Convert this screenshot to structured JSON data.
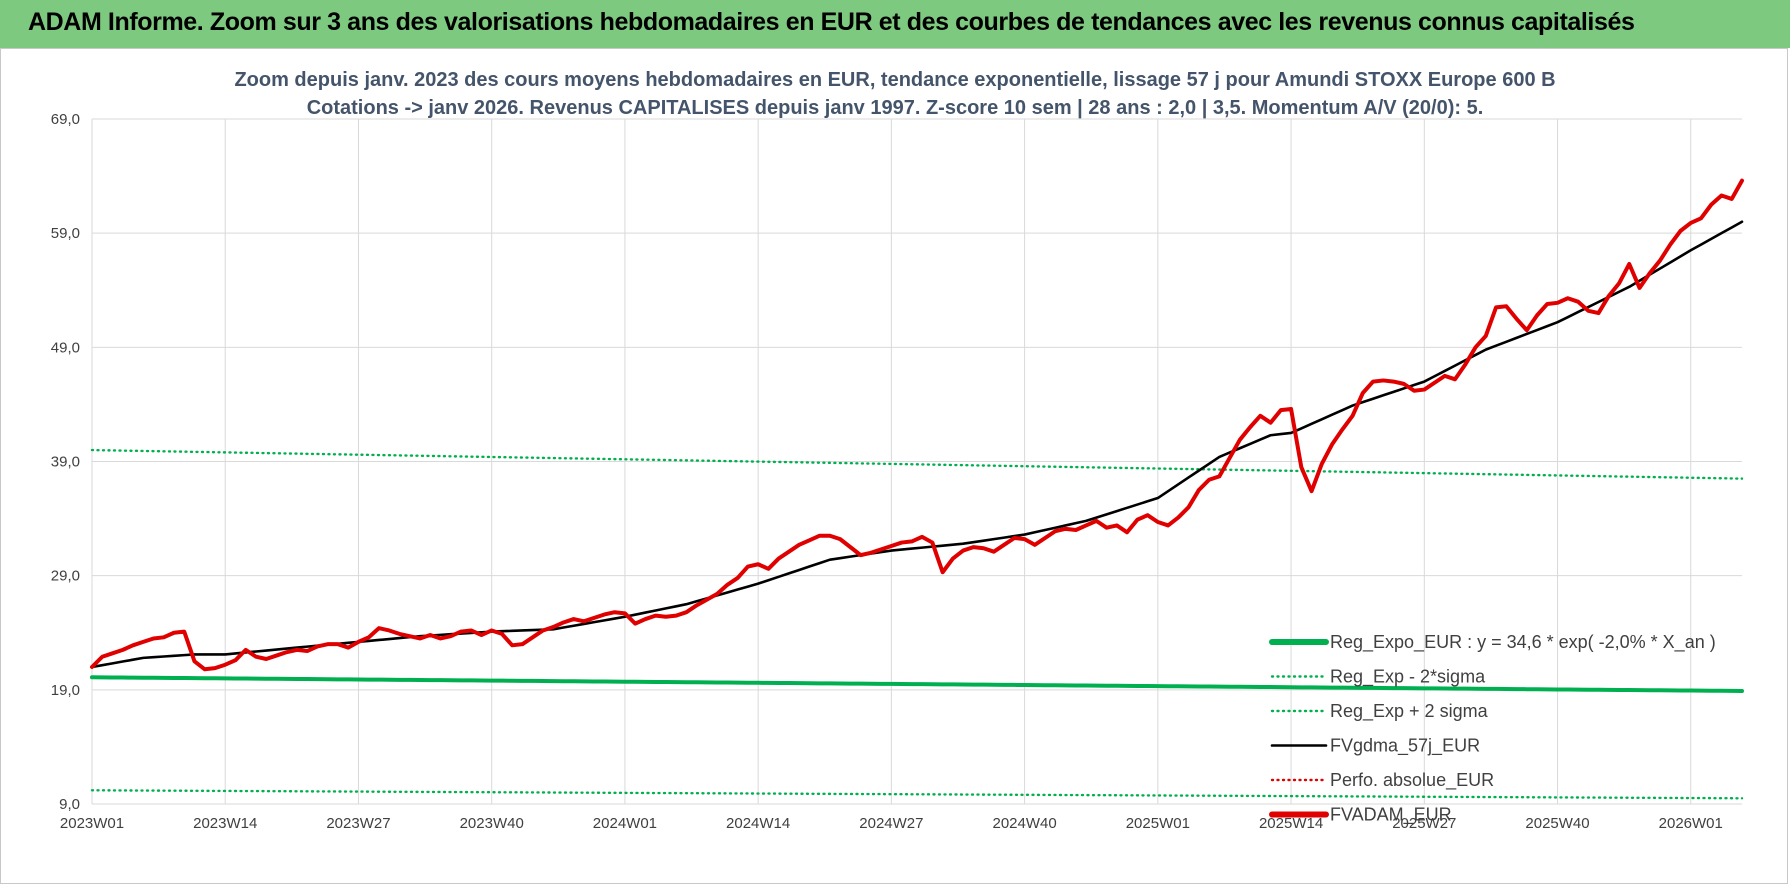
{
  "banner": {
    "title": "ADAM Informe. Zoom sur 3 ans des valorisations hebdomadaires en EUR et des courbes de tendances avec les revenus connus capitalisés"
  },
  "chart_data": {
    "type": "line",
    "title": "Zoom depuis janv. 2023 des cours moyens hebdomadaires en EUR, tendance exponentielle, lissage 57 j pour Amundi STOXX Europe 600 B",
    "subtitle": "Cotations -> janv 2026. Revenus CAPITALISES depuis janv 1997. Z-score 10 sem | 28 ans : 2,0 | 3,5. Momentum A/V (20/0): 5.",
    "ylim": [
      9,
      69
    ],
    "y_ticks": [
      "9,0",
      "19,0",
      "29,0",
      "39,0",
      "49,0",
      "59,0",
      "69,0"
    ],
    "x_range": [
      0,
      161
    ],
    "x_ticks": [
      {
        "i": 0,
        "label": "2023W01"
      },
      {
        "i": 13,
        "label": "2023W14"
      },
      {
        "i": 26,
        "label": "2023W27"
      },
      {
        "i": 39,
        "label": "2023W40"
      },
      {
        "i": 52,
        "label": "2024W01"
      },
      {
        "i": 65,
        "label": "2024W14"
      },
      {
        "i": 78,
        "label": "2024W27"
      },
      {
        "i": 91,
        "label": "2024W40"
      },
      {
        "i": 104,
        "label": "2025W01"
      },
      {
        "i": 117,
        "label": "2025W14"
      },
      {
        "i": 130,
        "label": "2025W27"
      },
      {
        "i": 143,
        "label": "2025W40"
      },
      {
        "i": 156,
        "label": "2026W01"
      }
    ],
    "grid": true,
    "legend_position": "bottom-right",
    "colors": {
      "green": "#00b050",
      "black": "#000000",
      "red": "#e00000",
      "grid": "#d9d9d9"
    },
    "series": [
      {
        "name": "Reg_Expo_EUR : y = 34,6 * exp( -2,0% *  X_an )",
        "style": "solid-thick",
        "color": "#00b050",
        "step": 1,
        "points": [
          [
            0,
            20.1
          ],
          [
            161,
            18.9
          ]
        ]
      },
      {
        "name": "Reg_Exp - 2*sigma",
        "style": "dotted",
        "color": "#00b050",
        "step": 1,
        "points": [
          [
            0,
            10.2
          ],
          [
            161,
            9.5
          ]
        ]
      },
      {
        "name": "Reg_Exp + 2 sigma",
        "style": "dotted",
        "color": "#00b050",
        "step": 1,
        "points": [
          [
            0,
            40.0
          ],
          [
            161,
            37.5
          ]
        ]
      },
      {
        "name": "FVgdma_57j_EUR",
        "style": "solid",
        "color": "#000000",
        "step": 1,
        "points": [
          [
            0,
            21.0
          ],
          [
            5,
            21.8
          ],
          [
            10,
            22.1
          ],
          [
            13,
            22.1
          ],
          [
            20,
            22.7
          ],
          [
            26,
            23.2
          ],
          [
            32,
            23.7
          ],
          [
            39,
            24.1
          ],
          [
            45,
            24.3
          ],
          [
            52,
            25.4
          ],
          [
            58,
            26.5
          ],
          [
            65,
            28.3
          ],
          [
            72,
            30.4
          ],
          [
            78,
            31.2
          ],
          [
            85,
            31.8
          ],
          [
            91,
            32.6
          ],
          [
            97,
            33.8
          ],
          [
            104,
            35.8
          ],
          [
            110,
            39.4
          ],
          [
            115,
            41.3
          ],
          [
            117,
            41.5
          ],
          [
            123,
            43.9
          ],
          [
            130,
            46.0
          ],
          [
            136,
            48.8
          ],
          [
            143,
            51.2
          ],
          [
            150,
            54.3
          ],
          [
            156,
            57.5
          ],
          [
            161,
            60.0
          ]
        ]
      },
      {
        "name": "Perfo. absolue_EUR",
        "style": "dotted",
        "color": "#e00000",
        "step": 1,
        "points": []
      },
      {
        "name": "FVADAM_EUR",
        "style": "solid-thick",
        "color": "#e00000",
        "step": 1,
        "points": [
          [
            0,
            21.0
          ],
          [
            1,
            21.9
          ],
          [
            2,
            22.2
          ],
          [
            3,
            22.5
          ],
          [
            4,
            22.9
          ],
          [
            5,
            23.2
          ],
          [
            6,
            23.5
          ],
          [
            7,
            23.6
          ],
          [
            8,
            24.0
          ],
          [
            9,
            24.1
          ],
          [
            10,
            21.5
          ],
          [
            11,
            20.8
          ],
          [
            12,
            20.9
          ],
          [
            13,
            21.2
          ],
          [
            14,
            21.6
          ],
          [
            15,
            22.5
          ],
          [
            16,
            21.9
          ],
          [
            17,
            21.7
          ],
          [
            18,
            22.0
          ],
          [
            19,
            22.3
          ],
          [
            20,
            22.5
          ],
          [
            21,
            22.4
          ],
          [
            22,
            22.8
          ],
          [
            23,
            23.0
          ],
          [
            24,
            23.0
          ],
          [
            25,
            22.7
          ],
          [
            26,
            23.2
          ],
          [
            27,
            23.6
          ],
          [
            28,
            24.4
          ],
          [
            29,
            24.2
          ],
          [
            30,
            23.9
          ],
          [
            31,
            23.7
          ],
          [
            32,
            23.5
          ],
          [
            33,
            23.8
          ],
          [
            34,
            23.5
          ],
          [
            35,
            23.7
          ],
          [
            36,
            24.1
          ],
          [
            37,
            24.2
          ],
          [
            38,
            23.8
          ],
          [
            39,
            24.2
          ],
          [
            40,
            23.9
          ],
          [
            41,
            22.9
          ],
          [
            42,
            23.0
          ],
          [
            43,
            23.6
          ],
          [
            44,
            24.2
          ],
          [
            45,
            24.5
          ],
          [
            46,
            24.9
          ],
          [
            47,
            25.2
          ],
          [
            48,
            25.0
          ],
          [
            49,
            25.3
          ],
          [
            50,
            25.6
          ],
          [
            51,
            25.8
          ],
          [
            52,
            25.7
          ],
          [
            53,
            24.8
          ],
          [
            54,
            25.2
          ],
          [
            55,
            25.5
          ],
          [
            56,
            25.4
          ],
          [
            57,
            25.5
          ],
          [
            58,
            25.8
          ],
          [
            59,
            26.4
          ],
          [
            60,
            26.9
          ],
          [
            61,
            27.4
          ],
          [
            62,
            28.2
          ],
          [
            63,
            28.8
          ],
          [
            64,
            29.8
          ],
          [
            65,
            30.0
          ],
          [
            66,
            29.6
          ],
          [
            67,
            30.5
          ],
          [
            68,
            31.1
          ],
          [
            69,
            31.7
          ],
          [
            70,
            32.1
          ],
          [
            71,
            32.5
          ],
          [
            72,
            32.5
          ],
          [
            73,
            32.2
          ],
          [
            74,
            31.5
          ],
          [
            75,
            30.8
          ],
          [
            76,
            31.0
          ],
          [
            77,
            31.3
          ],
          [
            78,
            31.6
          ],
          [
            79,
            31.9
          ],
          [
            80,
            32.0
          ],
          [
            81,
            32.4
          ],
          [
            82,
            31.9
          ],
          [
            83,
            29.3
          ],
          [
            84,
            30.5
          ],
          [
            85,
            31.2
          ],
          [
            86,
            31.5
          ],
          [
            87,
            31.4
          ],
          [
            88,
            31.1
          ],
          [
            89,
            31.7
          ],
          [
            90,
            32.3
          ],
          [
            91,
            32.2
          ],
          [
            92,
            31.7
          ],
          [
            93,
            32.3
          ],
          [
            94,
            32.9
          ],
          [
            95,
            33.1
          ],
          [
            96,
            33.0
          ],
          [
            97,
            33.4
          ],
          [
            98,
            33.8
          ],
          [
            99,
            33.2
          ],
          [
            100,
            33.4
          ],
          [
            101,
            32.8
          ],
          [
            102,
            33.9
          ],
          [
            103,
            34.3
          ],
          [
            104,
            33.7
          ],
          [
            105,
            33.4
          ],
          [
            106,
            34.1
          ],
          [
            107,
            35.0
          ],
          [
            108,
            36.5
          ],
          [
            109,
            37.4
          ],
          [
            110,
            37.7
          ],
          [
            111,
            39.3
          ],
          [
            112,
            40.9
          ],
          [
            113,
            42.0
          ],
          [
            114,
            43.0
          ],
          [
            115,
            42.4
          ],
          [
            116,
            43.5
          ],
          [
            117,
            43.6
          ],
          [
            118,
            38.5
          ],
          [
            119,
            36.4
          ],
          [
            120,
            38.8
          ],
          [
            121,
            40.5
          ],
          [
            122,
            41.8
          ],
          [
            123,
            43.0
          ],
          [
            124,
            45.0
          ],
          [
            125,
            46.0
          ],
          [
            126,
            46.1
          ],
          [
            127,
            46.0
          ],
          [
            128,
            45.8
          ],
          [
            129,
            45.2
          ],
          [
            130,
            45.3
          ],
          [
            131,
            45.9
          ],
          [
            132,
            46.5
          ],
          [
            133,
            46.2
          ],
          [
            134,
            47.5
          ],
          [
            135,
            49.0
          ],
          [
            136,
            50.0
          ],
          [
            137,
            52.5
          ],
          [
            138,
            52.6
          ],
          [
            139,
            51.5
          ],
          [
            140,
            50.5
          ],
          [
            141,
            51.8
          ],
          [
            142,
            52.8
          ],
          [
            143,
            52.9
          ],
          [
            144,
            53.3
          ],
          [
            145,
            53.0
          ],
          [
            146,
            52.2
          ],
          [
            147,
            52.0
          ],
          [
            148,
            53.5
          ],
          [
            149,
            54.6
          ],
          [
            150,
            56.3
          ],
          [
            151,
            54.2
          ],
          [
            152,
            55.5
          ],
          [
            153,
            56.6
          ],
          [
            154,
            58.0
          ],
          [
            155,
            59.2
          ],
          [
            156,
            59.9
          ],
          [
            157,
            60.3
          ],
          [
            158,
            61.5
          ],
          [
            159,
            62.3
          ],
          [
            160,
            62.0
          ],
          [
            161,
            63.6
          ]
        ]
      }
    ]
  }
}
